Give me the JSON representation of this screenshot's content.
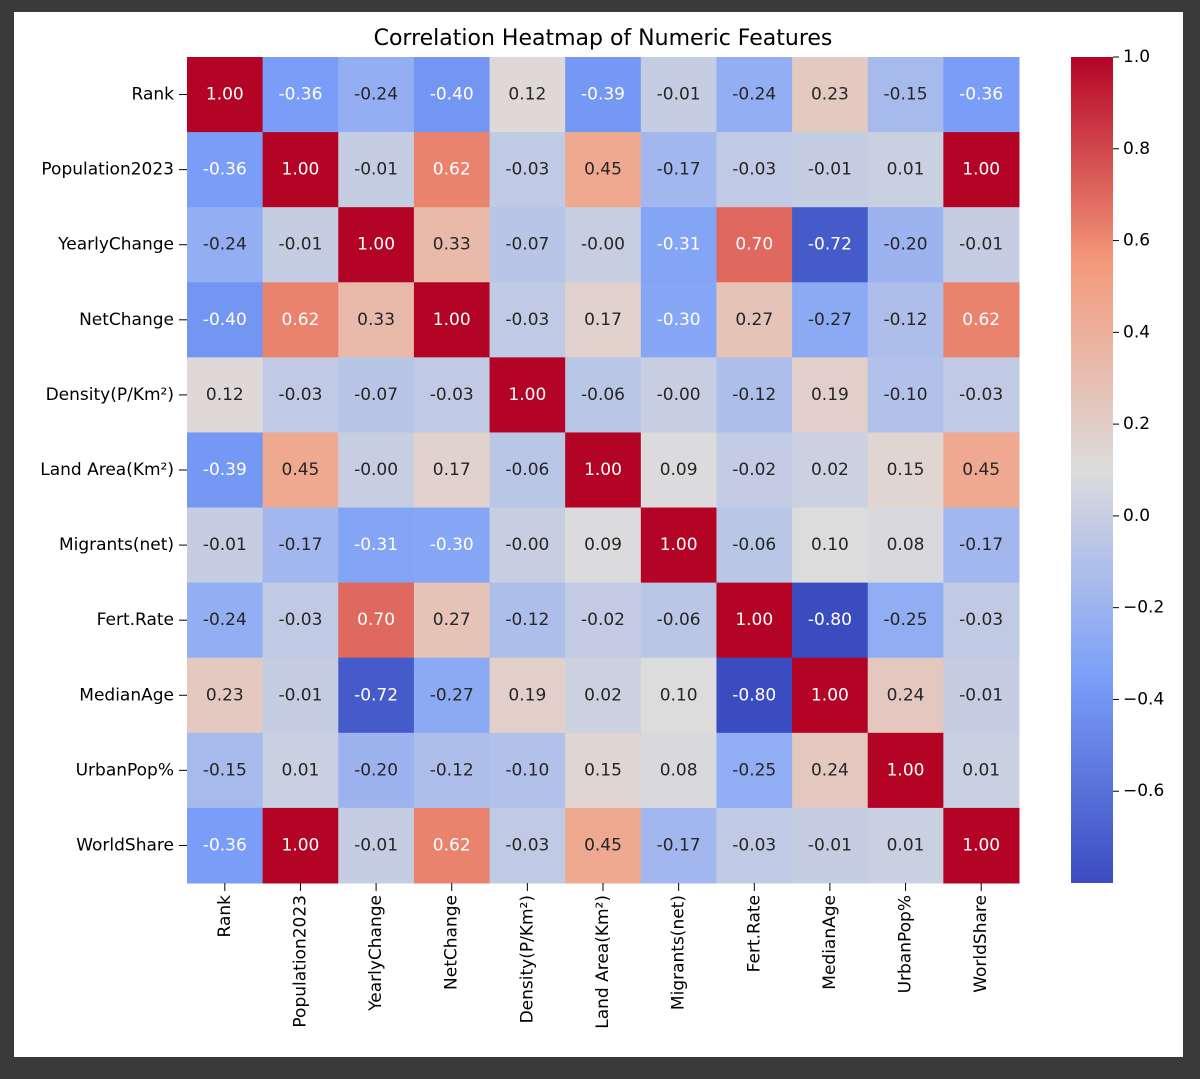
{
  "chart_data": {
    "type": "heatmap",
    "title": "Correlation Heatmap of Numeric Features",
    "categories": [
      "Rank",
      "Population2023",
      "YearlyChange",
      "NetChange",
      "Density(P/Km²)",
      "Land Area(Km²)",
      "Migrants(net)",
      "Fert.Rate",
      "MedianAge",
      "UrbanPop%",
      "WorldShare"
    ],
    "values": [
      [
        1,
        -0.36,
        -0.24,
        -0.4,
        0.12,
        -0.39,
        -0.01,
        -0.24,
        0.23,
        -0.15,
        -0.36
      ],
      [
        -0.36,
        1,
        -0.01,
        0.62,
        -0.03,
        0.45,
        -0.17,
        -0.03,
        -0.01,
        0.01,
        1
      ],
      [
        -0.24,
        -0.01,
        1,
        0.33,
        -0.07,
        0,
        -0.31,
        0.7,
        -0.72,
        -0.2,
        -0.01
      ],
      [
        -0.4,
        0.62,
        0.33,
        1,
        -0.03,
        0.17,
        -0.3,
        0.27,
        -0.27,
        -0.12,
        0.62
      ],
      [
        0.12,
        -0.03,
        -0.07,
        -0.03,
        1,
        -0.06,
        0,
        -0.12,
        0.19,
        -0.1,
        -0.03
      ],
      [
        -0.39,
        0.45,
        0,
        0.17,
        -0.06,
        1,
        0.09,
        -0.02,
        0.02,
        0.15,
        0.45
      ],
      [
        -0.01,
        -0.17,
        -0.31,
        -0.3,
        0,
        0.09,
        1,
        -0.06,
        0.1,
        0.08,
        -0.17
      ],
      [
        -0.24,
        -0.03,
        0.7,
        0.27,
        -0.12,
        -0.02,
        -0.06,
        1,
        -0.8,
        -0.25,
        -0.03
      ],
      [
        0.23,
        -0.01,
        -0.72,
        -0.27,
        0.19,
        0.02,
        0.1,
        -0.8,
        1,
        0.24,
        -0.01
      ],
      [
        -0.15,
        0.01,
        -0.2,
        -0.12,
        -0.1,
        0.15,
        0.08,
        -0.25,
        0.24,
        1,
        0.01
      ],
      [
        -0.36,
        1,
        -0.01,
        0.62,
        -0.03,
        0.45,
        -0.17,
        -0.03,
        -0.01,
        0.01,
        1
      ]
    ],
    "value_labels": [
      [
        "1.00",
        "-0.36",
        "-0.24",
        "-0.40",
        "0.12",
        "-0.39",
        "-0.01",
        "-0.24",
        "0.23",
        "-0.15",
        "-0.36"
      ],
      [
        "-0.36",
        "1.00",
        "-0.01",
        "0.62",
        "-0.03",
        "0.45",
        "-0.17",
        "-0.03",
        "-0.01",
        "0.01",
        "1.00"
      ],
      [
        "-0.24",
        "-0.01",
        "1.00",
        "0.33",
        "-0.07",
        "-0.00",
        "-0.31",
        "0.70",
        "-0.72",
        "-0.20",
        "-0.01"
      ],
      [
        "-0.40",
        "0.62",
        "0.33",
        "1.00",
        "-0.03",
        "0.17",
        "-0.30",
        "0.27",
        "-0.27",
        "-0.12",
        "0.62"
      ],
      [
        "0.12",
        "-0.03",
        "-0.07",
        "-0.03",
        "1.00",
        "-0.06",
        "-0.00",
        "-0.12",
        "0.19",
        "-0.10",
        "-0.03"
      ],
      [
        "-0.39",
        "0.45",
        "-0.00",
        "0.17",
        "-0.06",
        "1.00",
        "0.09",
        "-0.02",
        "0.02",
        "0.15",
        "0.45"
      ],
      [
        "-0.01",
        "-0.17",
        "-0.31",
        "-0.30",
        "-0.00",
        "0.09",
        "1.00",
        "-0.06",
        "0.10",
        "0.08",
        "-0.17"
      ],
      [
        "-0.24",
        "-0.03",
        "0.70",
        "0.27",
        "-0.12",
        "-0.02",
        "-0.06",
        "1.00",
        "-0.80",
        "-0.25",
        "-0.03"
      ],
      [
        "0.23",
        "-0.01",
        "-0.72",
        "-0.27",
        "0.19",
        "0.02",
        "0.10",
        "-0.80",
        "1.00",
        "0.24",
        "-0.01"
      ],
      [
        "-0.15",
        "0.01",
        "-0.20",
        "-0.12",
        "-0.10",
        "0.15",
        "0.08",
        "-0.25",
        "0.24",
        "1.00",
        "0.01"
      ],
      [
        "-0.36",
        "1.00",
        "-0.01",
        "0.62",
        "-0.03",
        "0.45",
        "-0.17",
        "-0.03",
        "-0.01",
        "0.01",
        "1.00"
      ]
    ],
    "colormap": [
      "#3b4cc0",
      "#7b9ff9",
      "#dddcdc",
      "#f49a7b",
      "#b40426"
    ],
    "clim": [
      -0.8,
      1.0
    ],
    "cticks": [
      {
        "value": 1.0,
        "label": "1.0"
      },
      0.8,
      0.6,
      0.4,
      0.2,
      {
        "value": 0.0,
        "label": "0.0"
      },
      {
        "value": -0.2,
        "label": "−0.2"
      },
      {
        "value": -0.4,
        "label": "−0.4"
      },
      {
        "value": -0.6,
        "label": "−0.6"
      }
    ]
  }
}
